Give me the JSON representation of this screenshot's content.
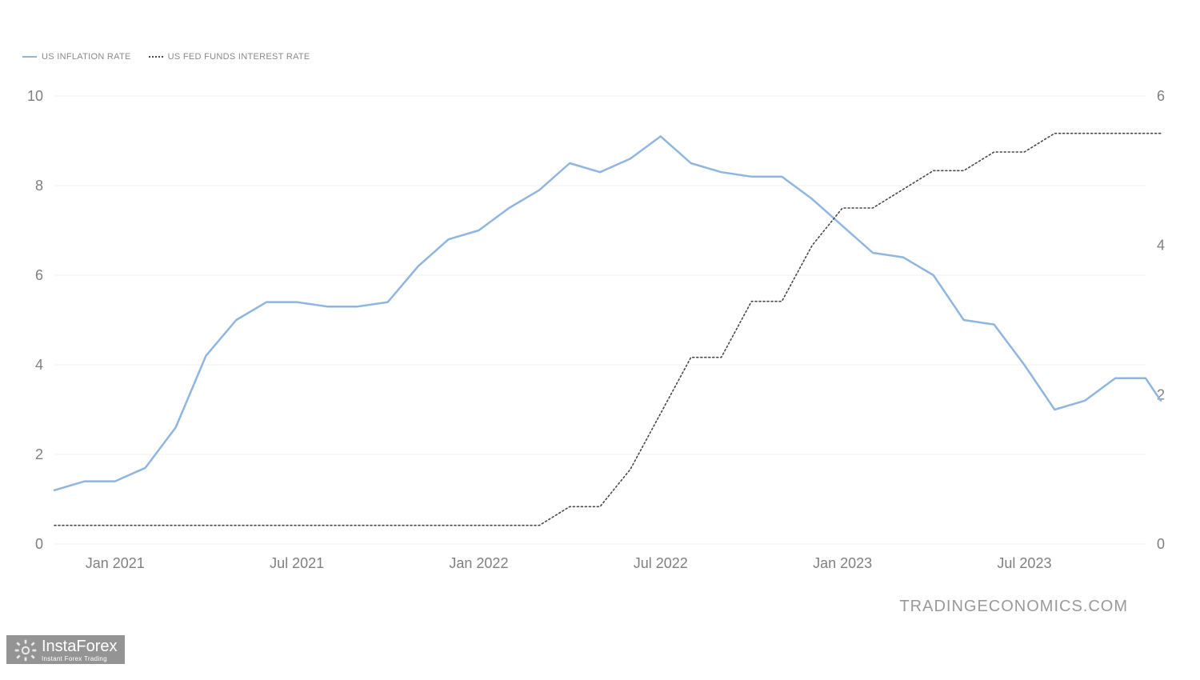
{
  "legend": {
    "series1": {
      "label": "US INFLATION RATE",
      "color": "#8fb6e0",
      "dash": "none"
    },
    "series2": {
      "label": "US FED FUNDS INTEREST RATE",
      "color": "#4a4a4a",
      "dash": "2,3"
    }
  },
  "chart": {
    "type": "line-dual-axis",
    "background_color": "#ffffff",
    "grid_color": "#f1f1f1",
    "axis_label_color": "#808080",
    "axis_label_fontsize": 18,
    "x": {
      "min": 0,
      "max": 36,
      "ticks": [
        {
          "pos": 2,
          "label": "Jan 2021"
        },
        {
          "pos": 8,
          "label": "Jul 2021"
        },
        {
          "pos": 14,
          "label": "Jan 2022"
        },
        {
          "pos": 20,
          "label": "Jul 2022"
        },
        {
          "pos": 26,
          "label": "Jan 2023"
        },
        {
          "pos": 32,
          "label": "Jul 2023"
        }
      ]
    },
    "y_left": {
      "min": 0,
      "max": 10,
      "ticks": [
        0,
        2,
        4,
        6,
        8,
        10
      ]
    },
    "y_right": {
      "min": 0,
      "max": 6,
      "ticks": [
        0,
        2,
        4,
        6
      ]
    },
    "series1": {
      "axis": "left",
      "color": "#8fb6e0",
      "width": 2.5,
      "dash": "none",
      "points": [
        [
          0,
          1.2
        ],
        [
          1,
          1.4
        ],
        [
          2,
          1.4
        ],
        [
          3,
          1.7
        ],
        [
          4,
          2.6
        ],
        [
          5,
          4.2
        ],
        [
          6,
          5.0
        ],
        [
          7,
          5.4
        ],
        [
          8,
          5.4
        ],
        [
          9,
          5.3
        ],
        [
          10,
          5.3
        ],
        [
          11,
          5.4
        ],
        [
          12,
          6.2
        ],
        [
          13,
          6.8
        ],
        [
          14,
          7.0
        ],
        [
          15,
          7.5
        ],
        [
          16,
          7.9
        ],
        [
          17,
          8.5
        ],
        [
          18,
          8.3
        ],
        [
          19,
          8.6
        ],
        [
          20,
          9.1
        ],
        [
          21,
          8.5
        ],
        [
          22,
          8.3
        ],
        [
          23,
          8.2
        ],
        [
          24,
          8.2
        ],
        [
          25,
          7.7
        ],
        [
          26,
          7.1
        ],
        [
          27,
          6.5
        ],
        [
          28,
          6.4
        ],
        [
          29,
          6.0
        ],
        [
          30,
          5.0
        ],
        [
          31,
          4.9
        ],
        [
          32,
          4.0
        ],
        [
          33,
          3.0
        ],
        [
          34,
          3.2
        ],
        [
          35,
          3.7
        ],
        [
          36,
          3.7
        ],
        [
          36.5,
          3.2
        ]
      ]
    },
    "series2": {
      "axis": "right",
      "color": "#4a4a4a",
      "width": 1.6,
      "dash": "2,3",
      "points": [
        [
          0,
          0.25
        ],
        [
          1,
          0.25
        ],
        [
          2,
          0.25
        ],
        [
          3,
          0.25
        ],
        [
          4,
          0.25
        ],
        [
          5,
          0.25
        ],
        [
          6,
          0.25
        ],
        [
          7,
          0.25
        ],
        [
          8,
          0.25
        ],
        [
          9,
          0.25
        ],
        [
          10,
          0.25
        ],
        [
          11,
          0.25
        ],
        [
          12,
          0.25
        ],
        [
          13,
          0.25
        ],
        [
          14,
          0.25
        ],
        [
          15,
          0.25
        ],
        [
          16,
          0.25
        ],
        [
          17,
          0.5
        ],
        [
          18,
          0.5
        ],
        [
          19,
          1.0
        ],
        [
          20,
          1.75
        ],
        [
          21,
          2.5
        ],
        [
          22,
          2.5
        ],
        [
          23,
          3.25
        ],
        [
          24,
          3.25
        ],
        [
          25,
          4.0
        ],
        [
          26,
          4.5
        ],
        [
          27,
          4.5
        ],
        [
          28,
          4.75
        ],
        [
          29,
          5.0
        ],
        [
          30,
          5.0
        ],
        [
          31,
          5.25
        ],
        [
          32,
          5.25
        ],
        [
          33,
          5.5
        ],
        [
          34,
          5.5
        ],
        [
          35,
          5.5
        ],
        [
          36,
          5.5
        ],
        [
          36.5,
          5.5
        ]
      ]
    }
  },
  "attribution": "TRADINGECONOMICS.COM",
  "watermark": {
    "title": "InstaForex",
    "subtitle": "Instant Forex Trading"
  }
}
